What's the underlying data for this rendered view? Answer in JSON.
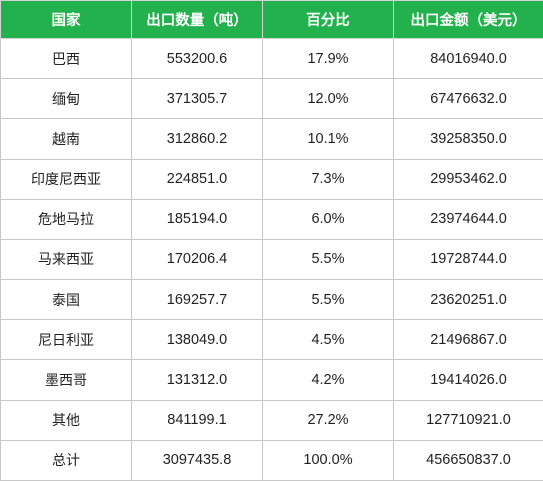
{
  "table": {
    "headers": [
      "国家",
      "出口数量（吨）",
      "百分比",
      "出口金额（美元）"
    ],
    "rows": [
      {
        "country": "巴西",
        "quantity": "553200.6",
        "percent": "17.9%",
        "amount": "84016940.0"
      },
      {
        "country": "缅甸",
        "quantity": "371305.7",
        "percent": "12.0%",
        "amount": "67476632.0"
      },
      {
        "country": "越南",
        "quantity": "312860.2",
        "percent": "10.1%",
        "amount": "39258350.0"
      },
      {
        "country": "印度尼西亚",
        "quantity": "224851.0",
        "percent": "7.3%",
        "amount": "29953462.0"
      },
      {
        "country": "危地马拉",
        "quantity": "185194.0",
        "percent": "6.0%",
        "amount": "23974644.0"
      },
      {
        "country": "马来西亚",
        "quantity": "170206.4",
        "percent": "5.5%",
        "amount": "19728744.0"
      },
      {
        "country": "泰国",
        "quantity": "169257.7",
        "percent": "5.5%",
        "amount": "23620251.0"
      },
      {
        "country": "尼日利亚",
        "quantity": "138049.0",
        "percent": "4.5%",
        "amount": "21496867.0"
      },
      {
        "country": "墨西哥",
        "quantity": "131312.0",
        "percent": "4.2%",
        "amount": "19414026.0"
      },
      {
        "country": "其他",
        "quantity": "841199.1",
        "percent": "27.2%",
        "amount": "127710921.0"
      },
      {
        "country": "总计",
        "quantity": "3097435.8",
        "percent": "100.0%",
        "amount": "456650837.0"
      }
    ]
  }
}
